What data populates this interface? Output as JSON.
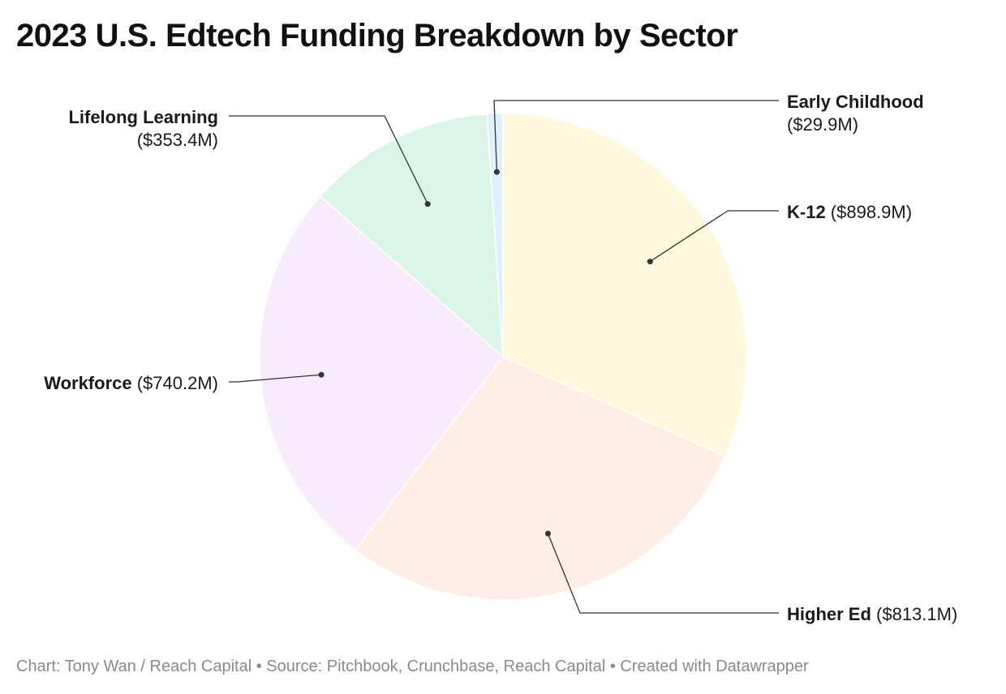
{
  "title": "2023 U.S. Edtech Funding Breakdown by Sector",
  "footer": "Chart: Tony Wan / Reach Capital • Source: Pitchbook, Crunchbase, Reach Capital • Created with Datawrapper",
  "chart_data": {
    "type": "pie",
    "title": "2023 U.S. Edtech Funding Breakdown by Sector",
    "unit": "$M",
    "slices": [
      {
        "label": "K-12",
        "value": 898.9,
        "value_label": "($898.9M)",
        "color": "#fff8dc"
      },
      {
        "label": "Higher Ed",
        "value": 813.1,
        "value_label": "($813.1M)",
        "color": "#ffeee3"
      },
      {
        "label": "Workforce",
        "value": 740.2,
        "value_label": "($740.2M)",
        "color": "#f8ecfc"
      },
      {
        "label": "Lifelong Learning",
        "value": 353.4,
        "value_label": "($353.4M)",
        "color": "#dcf5e9"
      },
      {
        "label": "Early Childhood",
        "value": 29.9,
        "value_label": "($29.9M)",
        "color": "#dcf1fb"
      }
    ],
    "start_angle": "12 o'clock",
    "direction": "clockwise",
    "legend": "none (direct labels with leader lines)"
  }
}
